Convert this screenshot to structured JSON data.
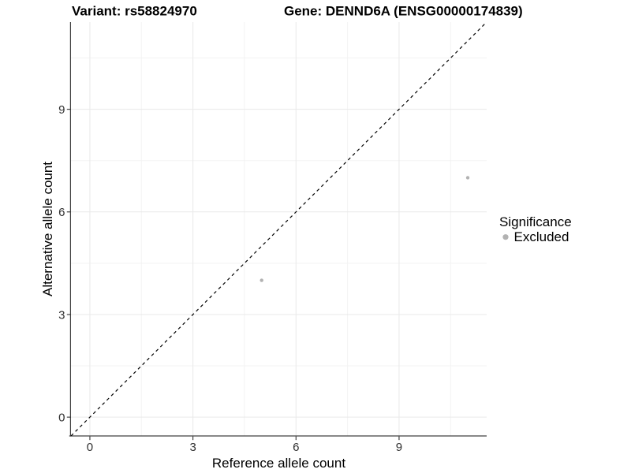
{
  "chart_data": {
    "type": "scatter",
    "titles": {
      "variant": "Variant: rs58824970",
      "gene": "Gene: DENND6A (ENSG00000174839)"
    },
    "xlabel": "Reference allele count",
    "ylabel": "Alternative allele count",
    "xlim": [
      -0.55,
      11.55
    ],
    "ylim": [
      -0.55,
      11.55
    ],
    "x_ticks": [
      0,
      3,
      6,
      9
    ],
    "y_ticks": [
      0,
      3,
      6,
      9
    ],
    "grid": {
      "show": true,
      "minor": [
        1.5,
        4.5,
        7.5,
        10.5
      ],
      "major_color": "#e9e9e9",
      "minor_color": "#f3f3f3"
    },
    "axis_color": "#404040",
    "identity_line": {
      "style": "dashed",
      "color": "#000000",
      "from": -0.55,
      "to": 11.55
    },
    "series": [
      {
        "name": "Excluded",
        "color": "#b2b2b2",
        "points": [
          {
            "x": 5,
            "y": 4
          },
          {
            "x": 11,
            "y": 7
          }
        ]
      }
    ],
    "legend": {
      "title": "Significance",
      "position": "right",
      "items": [
        {
          "label": "Excluded",
          "color": "#b2b2b2"
        }
      ]
    }
  }
}
